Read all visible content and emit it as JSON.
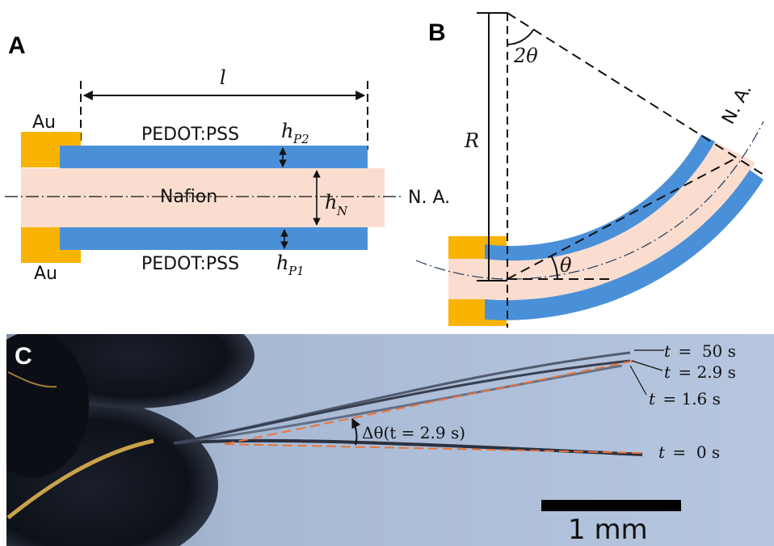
{
  "panels": {
    "a": {
      "letter": "A"
    },
    "b": {
      "letter": "B"
    },
    "c": {
      "letter": "C"
    }
  },
  "panel_a": {
    "length_symbol": "l",
    "electrode_top": "Au",
    "electrode_bottom": "Au",
    "layer_top": "PEDOT:PSS",
    "layer_middle": "Nafion",
    "layer_bottom": "PEDOT:PSS",
    "thickness_top": {
      "base": "h",
      "sub": "P2"
    },
    "thickness_middle": {
      "base": "h",
      "sub": "N"
    },
    "thickness_bottom": {
      "base": "h",
      "sub": "P1"
    },
    "neutral_axis": "N. A."
  },
  "panel_b": {
    "radius_symbol": "R",
    "angle_top": "2θ",
    "angle_bottom": "θ",
    "neutral_axis": "N. A."
  },
  "panel_c": {
    "labels": [
      {
        "t": "t",
        "eq": " =  50 s"
      },
      {
        "t": "t",
        "eq": " = 2.9 s"
      },
      {
        "t": "t",
        "eq": " = 1.6 s"
      },
      {
        "t": "t",
        "eq": " =  0 s"
      }
    ],
    "delta_label": "Δθ(t = 2.9 s)",
    "scale_bar_label": "1 mm"
  },
  "colors": {
    "gold": "#F8B400",
    "pedot": "#4A90D9",
    "nafion": "#FADDCF",
    "photo_bg": "#A9BCD8",
    "guide_orange": "#E8743B"
  },
  "icons": {
    "thickness_arrow": "double-arrow-icon",
    "angle_arrow": "curved-arrow-icon"
  }
}
